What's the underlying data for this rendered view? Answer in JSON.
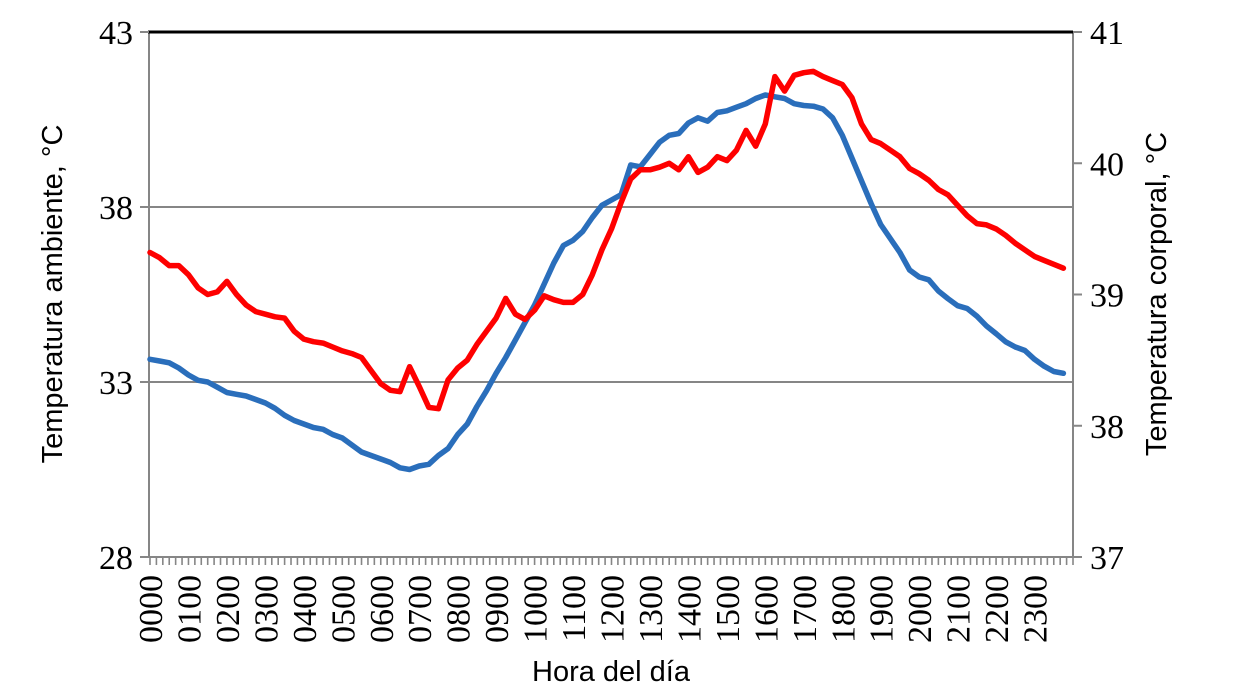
{
  "chart_data": {
    "type": "line",
    "title": "",
    "xlabel": "Hora del día",
    "ylabel_left": "Temperatura ambiente, °C",
    "ylabel_right": "Temperatura corporal, °C",
    "x_tick_labels": [
      "0000",
      "0100",
      "0200",
      "0300",
      "0400",
      "0500",
      "0600",
      "0700",
      "0800",
      "0900",
      "1000",
      "1100",
      "1200",
      "1300",
      "1400",
      "1500",
      "1600",
      "1700",
      "1800",
      "1900",
      "2000",
      "2100",
      "2200",
      "2300"
    ],
    "x_minor_tick_minutes": 10,
    "x_range_hours": [
      0,
      24
    ],
    "x_step_minutes": 15,
    "x_start": "0000",
    "left_axis": {
      "min": 28,
      "max": 43,
      "ticks": [
        28,
        33,
        38,
        43
      ]
    },
    "right_axis": {
      "min": 37,
      "max": 41,
      "ticks": [
        37,
        38,
        39,
        40,
        41
      ]
    },
    "gridlines_left_values": [
      33,
      38
    ],
    "grid_on": true,
    "legend_position": "none",
    "colors": {
      "ambient_line": "#2A6EBB",
      "body_line": "#FE0000",
      "axis_gray": "#868686",
      "top_border": "#000000"
    },
    "series": [
      {
        "name": "Temperatura ambiente",
        "axis": "left",
        "color": "#2A6EBB",
        "values": [
          33.65,
          33.6,
          33.55,
          33.4,
          33.2,
          33.05,
          33.0,
          32.85,
          32.7,
          32.65,
          32.6,
          32.5,
          32.4,
          32.25,
          32.05,
          31.9,
          31.8,
          31.7,
          31.65,
          31.5,
          31.4,
          31.2,
          31.0,
          30.9,
          30.8,
          30.7,
          30.55,
          30.5,
          30.6,
          30.65,
          30.9,
          31.1,
          31.5,
          31.8,
          32.3,
          32.75,
          33.25,
          33.7,
          34.2,
          34.7,
          35.2,
          35.8,
          36.4,
          36.9,
          37.05,
          37.3,
          37.7,
          38.05,
          38.2,
          38.35,
          39.2,
          39.15,
          39.5,
          39.85,
          40.05,
          40.1,
          40.4,
          40.55,
          40.45,
          40.7,
          40.75,
          40.85,
          40.95,
          41.1,
          41.2,
          41.15,
          41.1,
          40.95,
          40.9,
          40.88,
          40.8,
          40.55,
          40.05,
          39.4,
          38.75,
          38.1,
          37.5,
          37.1,
          36.7,
          36.2,
          36.0,
          35.92,
          35.6,
          35.38,
          35.18,
          35.1,
          34.88,
          34.6,
          34.38,
          34.15,
          34.0,
          33.9,
          33.65,
          33.45,
          33.3,
          33.25
        ]
      },
      {
        "name": "Temperatura corporal",
        "axis": "right",
        "color": "#FE0000",
        "values": [
          39.32,
          39.28,
          39.22,
          39.22,
          39.15,
          39.05,
          39.0,
          39.02,
          39.1,
          39.0,
          38.92,
          38.87,
          38.85,
          38.83,
          38.82,
          38.72,
          38.66,
          38.64,
          38.63,
          38.6,
          38.57,
          38.55,
          38.52,
          38.42,
          38.32,
          38.27,
          38.26,
          38.45,
          38.3,
          38.14,
          38.13,
          38.35,
          38.44,
          38.5,
          38.62,
          38.72,
          38.82,
          38.97,
          38.85,
          38.81,
          38.88,
          38.99,
          38.96,
          38.94,
          38.94,
          39.0,
          39.15,
          39.34,
          39.5,
          39.7,
          39.88,
          39.95,
          39.95,
          39.97,
          40.0,
          39.95,
          40.05,
          39.93,
          39.97,
          40.05,
          40.02,
          40.1,
          40.25,
          40.13,
          40.3,
          40.66,
          40.55,
          40.67,
          40.69,
          40.7,
          40.66,
          40.63,
          40.6,
          40.5,
          40.3,
          40.18,
          40.15,
          40.1,
          40.05,
          39.96,
          39.92,
          39.87,
          39.8,
          39.76,
          39.68,
          39.6,
          39.54,
          39.53,
          39.5,
          39.45,
          39.39,
          39.34,
          39.29,
          39.26,
          39.23,
          39.2
        ]
      }
    ]
  }
}
